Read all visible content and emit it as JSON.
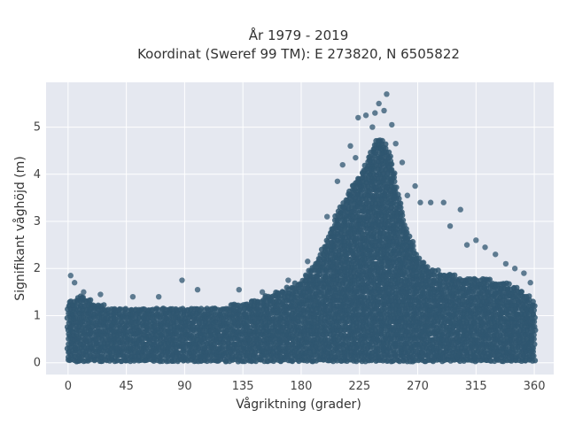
{
  "chart_data": {
    "type": "scatter",
    "title": "År 1979 - 2019",
    "subtitle": "Koordinat (Sweref 99 TM): E 273820, N 6505822",
    "xlabel": "Vågriktning (grader)",
    "ylabel": "Signifikant våghöjd (m)",
    "xlim": [
      -17,
      375
    ],
    "ylim": [
      -0.25,
      5.95
    ],
    "xticks": [
      0,
      45,
      90,
      135,
      180,
      225,
      270,
      315,
      360
    ],
    "yticks": [
      0,
      1,
      2,
      3,
      4,
      5
    ],
    "grid": true,
    "marker_color": "#2f5670",
    "background_color": "#e5e8f0",
    "envelope": {
      "direction_deg": [
        0,
        10,
        20,
        30,
        45,
        60,
        75,
        90,
        105,
        120,
        135,
        150,
        160,
        170,
        180,
        190,
        200,
        205,
        210,
        215,
        220,
        225,
        230,
        235,
        240,
        245,
        250,
        255,
        260,
        265,
        270,
        280,
        290,
        300,
        315,
        330,
        345,
        360
      ],
      "max_height_m": [
        1.3,
        1.45,
        1.3,
        1.2,
        1.15,
        1.15,
        1.15,
        1.2,
        1.2,
        1.2,
        1.25,
        1.4,
        1.5,
        1.6,
        1.75,
        2.1,
        2.6,
        3.0,
        3.3,
        3.5,
        3.8,
        4.0,
        4.3,
        4.6,
        4.8,
        4.7,
        4.3,
        3.6,
        3.0,
        2.6,
        2.3,
        2.0,
        1.9,
        1.85,
        1.8,
        1.75,
        1.65,
        1.3
      ],
      "min_height_m": 0.05
    },
    "outliers": [
      {
        "x": 2,
        "y": 1.85
      },
      {
        "x": 5,
        "y": 1.7
      },
      {
        "x": 12,
        "y": 1.5
      },
      {
        "x": 25,
        "y": 1.45
      },
      {
        "x": 50,
        "y": 1.4
      },
      {
        "x": 70,
        "y": 1.4
      },
      {
        "x": 88,
        "y": 1.75
      },
      {
        "x": 100,
        "y": 1.55
      },
      {
        "x": 132,
        "y": 1.55
      },
      {
        "x": 150,
        "y": 1.5
      },
      {
        "x": 170,
        "y": 1.75
      },
      {
        "x": 185,
        "y": 2.15
      },
      {
        "x": 200,
        "y": 3.1
      },
      {
        "x": 208,
        "y": 3.85
      },
      {
        "x": 212,
        "y": 4.2
      },
      {
        "x": 218,
        "y": 4.6
      },
      {
        "x": 222,
        "y": 4.35
      },
      {
        "x": 224,
        "y": 5.2
      },
      {
        "x": 230,
        "y": 5.25
      },
      {
        "x": 235,
        "y": 5.0
      },
      {
        "x": 237,
        "y": 5.3
      },
      {
        "x": 240,
        "y": 5.5
      },
      {
        "x": 244,
        "y": 5.35
      },
      {
        "x": 246,
        "y": 5.7
      },
      {
        "x": 250,
        "y": 5.05
      },
      {
        "x": 253,
        "y": 4.65
      },
      {
        "x": 258,
        "y": 4.25
      },
      {
        "x": 262,
        "y": 3.55
      },
      {
        "x": 268,
        "y": 3.75
      },
      {
        "x": 272,
        "y": 3.4
      },
      {
        "x": 280,
        "y": 3.4
      },
      {
        "x": 290,
        "y": 3.4
      },
      {
        "x": 295,
        "y": 2.9
      },
      {
        "x": 303,
        "y": 3.25
      },
      {
        "x": 308,
        "y": 2.5
      },
      {
        "x": 315,
        "y": 2.6
      },
      {
        "x": 322,
        "y": 2.45
      },
      {
        "x": 330,
        "y": 2.3
      },
      {
        "x": 338,
        "y": 2.1
      },
      {
        "x": 345,
        "y": 2.0
      },
      {
        "x": 352,
        "y": 1.9
      },
      {
        "x": 357,
        "y": 1.7
      }
    ]
  }
}
